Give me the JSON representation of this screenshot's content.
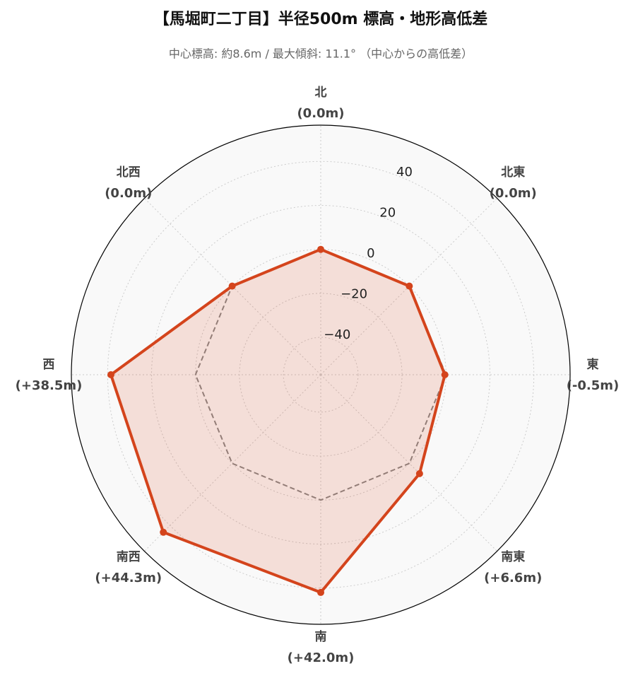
{
  "chart_data": {
    "type": "radar",
    "title": "【馬堀町二丁目】半径500m 標高・地形高低差",
    "subtitle": "中心標高: 約8.6m / 最大傾斜: 11.1° （中心からの高低差）",
    "categories": [
      "北",
      "北東",
      "東",
      "南東",
      "南",
      "南西",
      "西",
      "北西"
    ],
    "series": [
      {
        "color": "#d4441c",
        "values": [
          0.0,
          0.0,
          -0.5,
          6.6,
          42.0,
          44.3,
          38.5,
          0.0
        ],
        "value_labels": [
          "(0.0m)",
          "(0.0m)",
          "(-0.5m)",
          "(+6.6m)",
          "(+42.0m)",
          "(+44.3m)",
          "(+38.5m)",
          "(0.0m)"
        ]
      },
      {
        "color": "#888888",
        "dashed": true,
        "values": [
          0,
          0,
          0,
          0,
          0,
          0,
          0,
          0
        ]
      }
    ],
    "ylim": [
      -57,
      56.5
    ],
    "yticks": [
      {
        "value": -40,
        "label": "−40"
      },
      {
        "value": -20,
        "label": "−20"
      },
      0,
      20,
      40
    ],
    "grid": true
  }
}
